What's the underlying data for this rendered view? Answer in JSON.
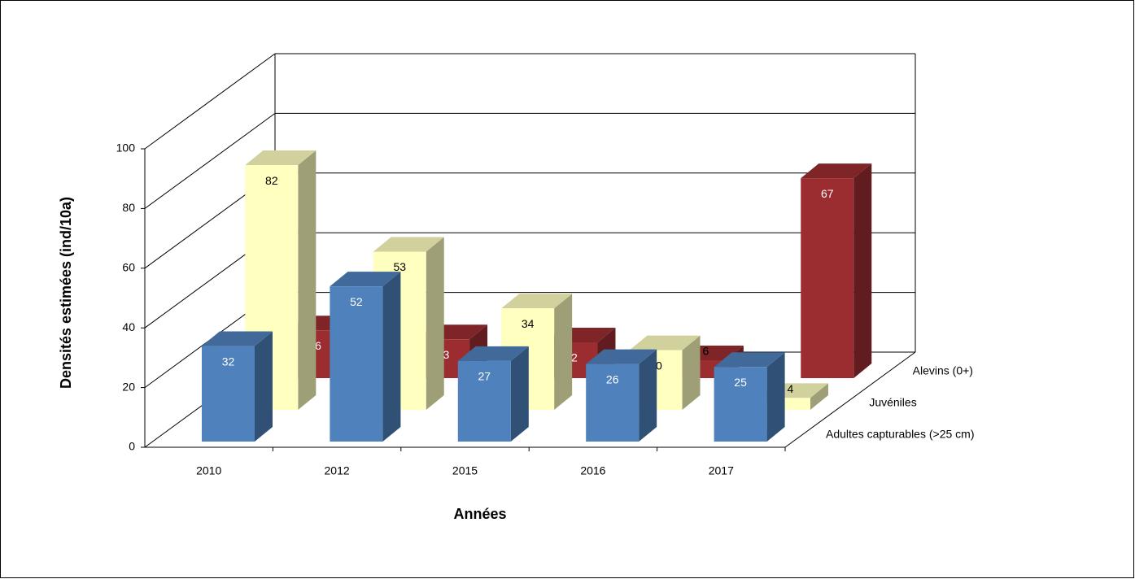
{
  "chart_data": {
    "type": "bar3d",
    "xlabel": "Années",
    "ylabel": "Densités estimées (ind/10a)",
    "categories": [
      "2010",
      "2012",
      "2015",
      "2016",
      "2017"
    ],
    "series": [
      {
        "name": "Adultes capturables (>25 cm)",
        "color": "#4f81bd",
        "values": [
          32,
          52,
          27,
          26,
          25
        ]
      },
      {
        "name": "Juvéniles",
        "color": "#ffffc0",
        "values": [
          82,
          53,
          34,
          20,
          4
        ]
      },
      {
        "name": "Alevins (0+)",
        "color": "#9b2d30",
        "values": [
          16,
          13,
          12,
          6,
          67
        ]
      }
    ],
    "ylim": [
      0,
      100
    ],
    "yticks": [
      0,
      20,
      40,
      60,
      80,
      100
    ],
    "grid": true
  }
}
